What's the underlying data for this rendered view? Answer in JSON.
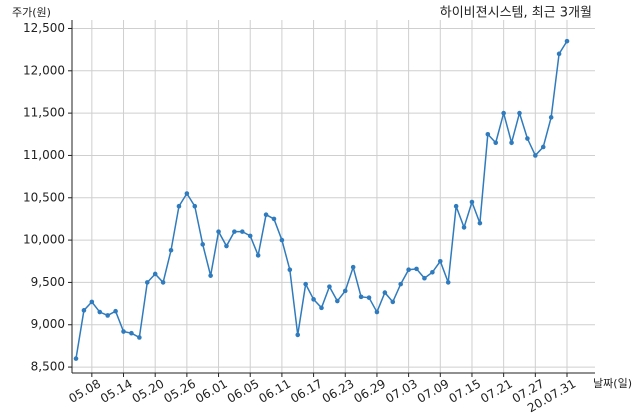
{
  "chart_data": {
    "type": "line",
    "title": "하이비젼시스템, 최근 3개월",
    "y_label": "주가(원)",
    "x_label": "날짜(일)",
    "categories": [
      null,
      null,
      "05.08",
      null,
      null,
      null,
      "05.14",
      null,
      null,
      null,
      "05.20",
      null,
      null,
      null,
      "05.26",
      null,
      null,
      null,
      "06.01",
      null,
      null,
      null,
      "06.05",
      null,
      null,
      null,
      "06.11",
      null,
      null,
      null,
      "06.17",
      null,
      null,
      null,
      "06.23",
      null,
      null,
      null,
      "06.29",
      null,
      null,
      null,
      "07.03",
      null,
      null,
      null,
      "07.09",
      null,
      null,
      null,
      "07.15",
      null,
      null,
      null,
      "07.21",
      null,
      null,
      null,
      "07.27",
      null,
      null,
      null,
      "20.07.31"
    ],
    "series": [
      {
        "color": "#2f7bbd",
        "values": [
          8600,
          9170,
          9270,
          9150,
          9110,
          9160,
          8920,
          8900,
          8850,
          9500,
          9600,
          9500,
          9880,
          10400,
          10550,
          10400,
          9950,
          9580,
          10100,
          9930,
          10100,
          10100,
          10050,
          9820,
          10300,
          10250,
          10000,
          9650,
          8880,
          9480,
          9300,
          9200,
          9450,
          9280,
          9400,
          9680,
          9330,
          9320,
          9150,
          9380,
          9270,
          9480,
          9650,
          9660,
          9550,
          9620,
          9750,
          9500,
          10400,
          10150,
          10450,
          10200,
          11250,
          11150,
          11500,
          11150,
          11500,
          11200,
          11000,
          11100,
          11450,
          12200,
          12350
        ]
      }
    ],
    "ylim": [
      8430,
      12600
    ],
    "yticks": [
      {
        "value": 8500,
        "label": "8,500"
      },
      {
        "value": 9000,
        "label": "9,000"
      },
      {
        "value": 9500,
        "label": "9,500"
      },
      {
        "value": 10000,
        "label": "10,000"
      },
      {
        "value": 10500,
        "label": "10,500"
      },
      {
        "value": 11000,
        "label": "11,000"
      },
      {
        "value": 11500,
        "label": "11,500"
      },
      {
        "value": 12000,
        "label": "12,000"
      },
      {
        "value": 12500,
        "label": "12,500"
      }
    ],
    "grid": true
  }
}
